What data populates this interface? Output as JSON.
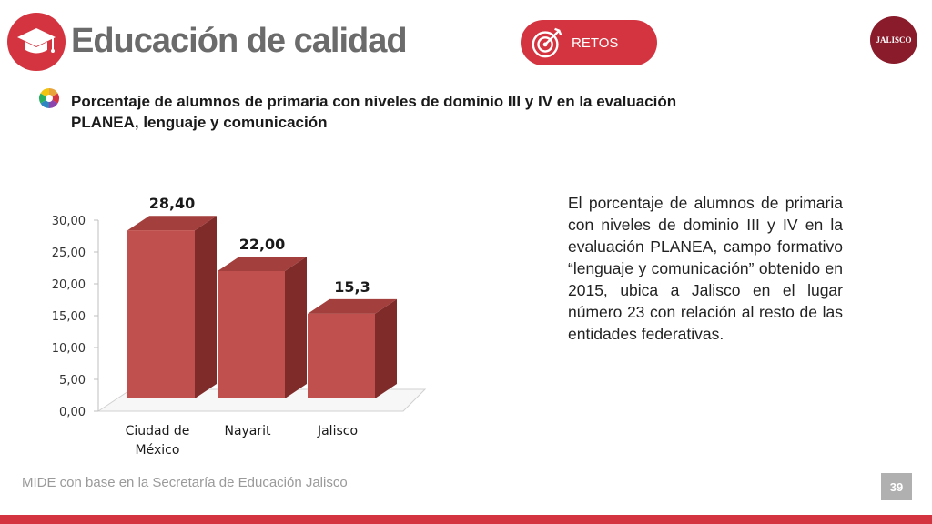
{
  "header": {
    "title": "Educación de calidad",
    "badge_label": "RETOS",
    "logo_text": "JALISCO",
    "icons": [
      "graduation-cap-icon",
      "target-arrow-icon",
      "jalisco-seal-icon",
      "colorful-bullet-icon"
    ]
  },
  "subtitle": "Porcentaje de alumnos de primaria con niveles de dominio III y IV en la evaluación PLANEA, lenguaje y comunicación",
  "description": "El porcentaje de alumnos de primaria con niveles de dominio III y IV en la evaluación PLANEA, campo formativo “lenguaje y comunicación” obtenido en 2015, ubica a Jalisco en el lugar número 23 con relación al resto de las entidades federativas.",
  "footer": {
    "source": "MIDE con base en la Secretaría de Educación Jalisco",
    "page_number": "39"
  },
  "colors": {
    "accent": "#d3343f",
    "bar_front": "#c0504d",
    "bar_side": "#7e2b2a",
    "bar_top": "#a33f3c",
    "title_gray": "#6b6b6b"
  },
  "chart_data": {
    "type": "bar",
    "style": "3d",
    "categories": [
      [
        "Ciudad de",
        "México"
      ],
      [
        "Nayarit"
      ],
      [
        "Jalisco"
      ]
    ],
    "values": [
      28.4,
      22.0,
      15.3
    ],
    "data_labels": [
      "28,40",
      "22,00",
      "15,3"
    ],
    "ylim": [
      0,
      30
    ],
    "y_ticks": [
      "0,00",
      "5,00",
      "10,00",
      "15,00",
      "20,00",
      "25,00",
      "30,00"
    ],
    "y_tick_values": [
      0,
      5,
      10,
      15,
      20,
      25,
      30
    ],
    "grid": false,
    "legend": "none"
  }
}
